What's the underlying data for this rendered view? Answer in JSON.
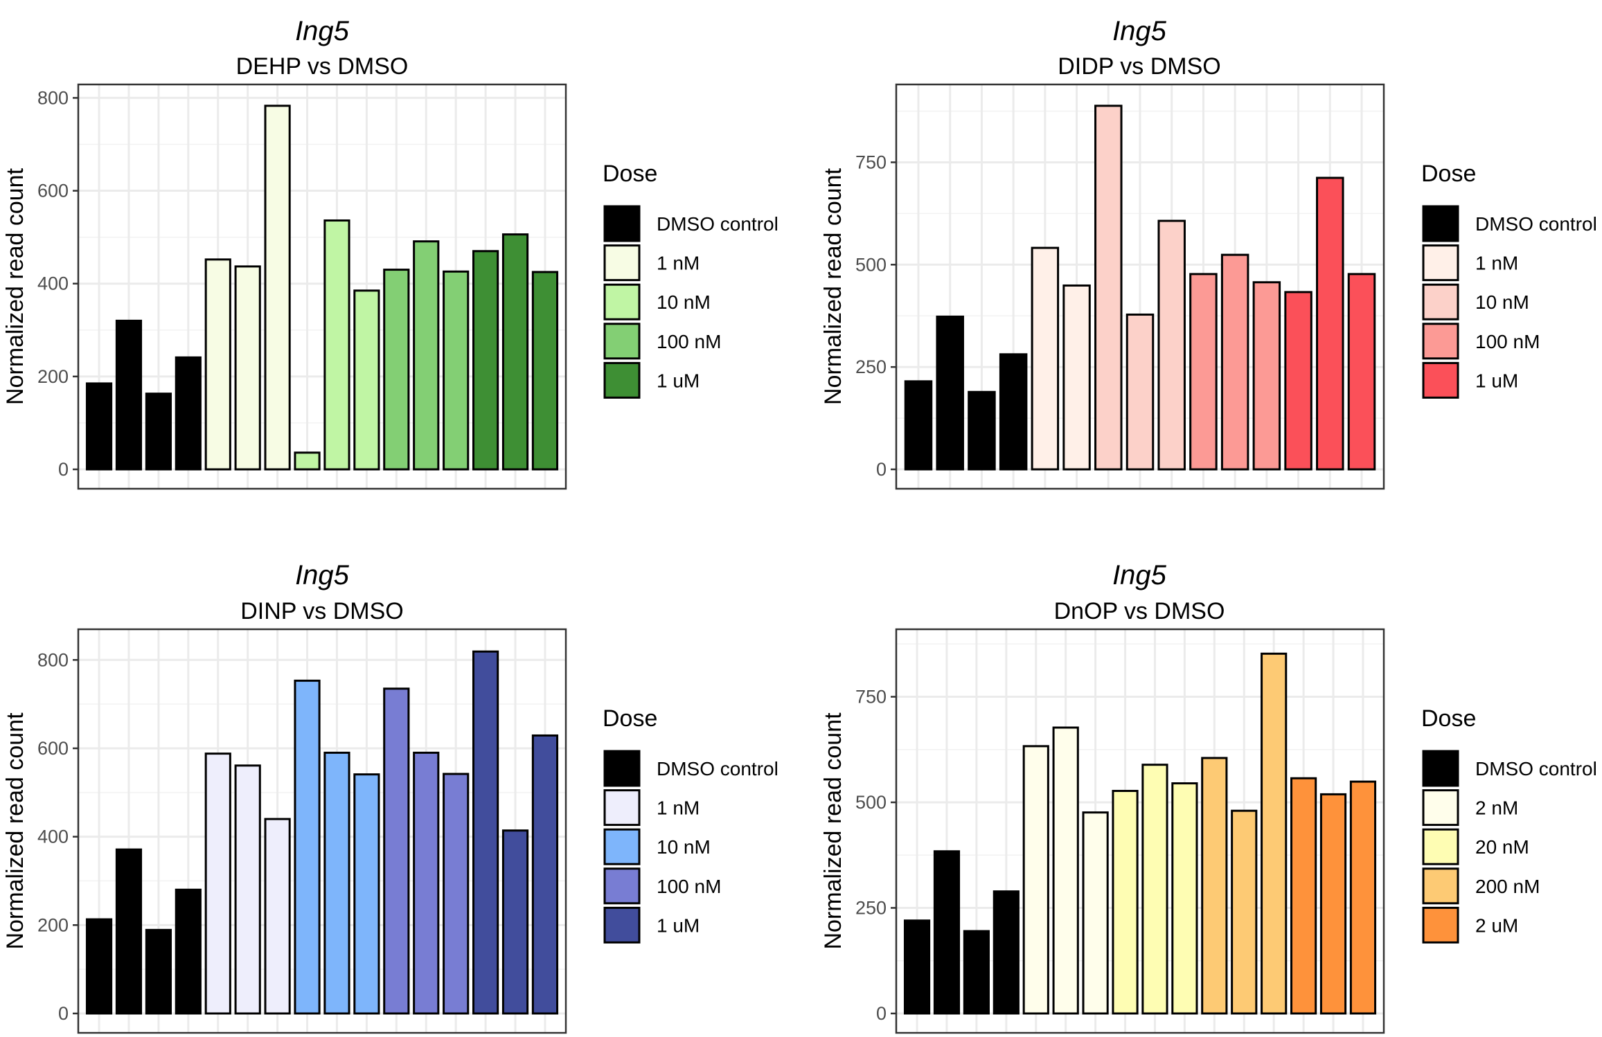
{
  "figure_layout": "2x2 grid of bar charts",
  "chart_data": [
    {
      "type": "bar",
      "gene": "Ing5",
      "title": "DEHP vs DMSO",
      "xlabel": "",
      "ylabel": "Normalized read count",
      "ylim": [
        0,
        820
      ],
      "yticks": [
        0,
        200,
        400,
        600,
        800
      ],
      "grid": true,
      "legend": {
        "title": "Dose",
        "placement": "right",
        "entries": [
          {
            "label": "DMSO control",
            "color": "#000000"
          },
          {
            "label": "1 nM",
            "color": "#f7fce4"
          },
          {
            "label": "10 nM",
            "color": "#c0f5a4"
          },
          {
            "label": "100 nM",
            "color": "#83cf74"
          },
          {
            "label": "1 uM",
            "color": "#3e8f34"
          }
        ]
      },
      "bars": [
        {
          "dose": "DMSO control",
          "value": 185
        },
        {
          "dose": "DMSO control",
          "value": 320
        },
        {
          "dose": "DMSO control",
          "value": 163
        },
        {
          "dose": "DMSO control",
          "value": 241
        },
        {
          "dose": "1 nM",
          "value": 452
        },
        {
          "dose": "1 nM",
          "value": 437
        },
        {
          "dose": "1 nM",
          "value": 783
        },
        {
          "dose": "10 nM",
          "value": 36
        },
        {
          "dose": "10 nM",
          "value": 536
        },
        {
          "dose": "10 nM",
          "value": 385
        },
        {
          "dose": "100 nM",
          "value": 430
        },
        {
          "dose": "100 nM",
          "value": 491
        },
        {
          "dose": "100 nM",
          "value": 426
        },
        {
          "dose": "1 uM",
          "value": 470
        },
        {
          "dose": "1 uM",
          "value": 506
        },
        {
          "dose": "1 uM",
          "value": 425
        }
      ]
    },
    {
      "type": "bar",
      "gene": "Ing5",
      "title": "DIDP vs DMSO",
      "xlabel": "",
      "ylabel": "Normalized read count",
      "ylim": [
        0,
        930
      ],
      "yticks": [
        0,
        250,
        500,
        750
      ],
      "grid": true,
      "legend": {
        "title": "Dose",
        "placement": "right",
        "entries": [
          {
            "label": "DMSO control",
            "color": "#000000"
          },
          {
            "label": "1 nM",
            "color": "#fff0e8"
          },
          {
            "label": "10 nM",
            "color": "#fcd1c9"
          },
          {
            "label": "100 nM",
            "color": "#fc9a95"
          },
          {
            "label": "1 uM",
            "color": "#fb5059"
          }
        ]
      },
      "bars": [
        {
          "dose": "DMSO control",
          "value": 215
        },
        {
          "dose": "DMSO control",
          "value": 373
        },
        {
          "dose": "DMSO control",
          "value": 189
        },
        {
          "dose": "DMSO control",
          "value": 281
        },
        {
          "dose": "1 nM",
          "value": 541
        },
        {
          "dose": "1 nM",
          "value": 449
        },
        {
          "dose": "10 nM",
          "value": 888
        },
        {
          "dose": "10 nM",
          "value": 378
        },
        {
          "dose": "10 nM",
          "value": 607
        },
        {
          "dose": "100 nM",
          "value": 477
        },
        {
          "dose": "100 nM",
          "value": 524
        },
        {
          "dose": "100 nM",
          "value": 457
        },
        {
          "dose": "1 uM",
          "value": 433
        },
        {
          "dose": "1 uM",
          "value": 712
        },
        {
          "dose": "1 uM",
          "value": 477
        }
      ]
    },
    {
      "type": "bar",
      "gene": "Ing5",
      "title": "DINP vs DMSO",
      "xlabel": "",
      "ylabel": "Normalized read count",
      "ylim": [
        0,
        860
      ],
      "yticks": [
        0,
        200,
        400,
        600,
        800
      ],
      "grid": true,
      "legend": {
        "title": "Dose",
        "placement": "right",
        "entries": [
          {
            "label": "DMSO control",
            "color": "#000000"
          },
          {
            "label": "1 nM",
            "color": "#eeeefc"
          },
          {
            "label": "10 nM",
            "color": "#7eb5fb"
          },
          {
            "label": "100 nM",
            "color": "#787dd3"
          },
          {
            "label": "1 uM",
            "color": "#414d9c"
          }
        ]
      },
      "bars": [
        {
          "dose": "DMSO control",
          "value": 213
        },
        {
          "dose": "DMSO control",
          "value": 371
        },
        {
          "dose": "DMSO control",
          "value": 189
        },
        {
          "dose": "DMSO control",
          "value": 280
        },
        {
          "dose": "1 nM",
          "value": 588
        },
        {
          "dose": "1 nM",
          "value": 561
        },
        {
          "dose": "1 nM",
          "value": 440
        },
        {
          "dose": "10 nM",
          "value": 753
        },
        {
          "dose": "10 nM",
          "value": 590
        },
        {
          "dose": "10 nM",
          "value": 541
        },
        {
          "dose": "100 nM",
          "value": 735
        },
        {
          "dose": "100 nM",
          "value": 590
        },
        {
          "dose": "100 nM",
          "value": 542
        },
        {
          "dose": "1 uM",
          "value": 819
        },
        {
          "dose": "1 uM",
          "value": 414
        },
        {
          "dose": "1 uM",
          "value": 629
        }
      ]
    },
    {
      "type": "bar",
      "gene": "Ing5",
      "title": "DnOP vs DMSO",
      "xlabel": "",
      "ylabel": "Normalized read count",
      "ylim": [
        0,
        900
      ],
      "yticks": [
        0,
        250,
        500,
        750
      ],
      "grid": true,
      "legend": {
        "title": "Dose",
        "placement": "right",
        "entries": [
          {
            "label": "DMSO control",
            "color": "#000000"
          },
          {
            "label": "2 nM",
            "color": "#fffeeb"
          },
          {
            "label": "20 nM",
            "color": "#fefdb3"
          },
          {
            "label": "200 nM",
            "color": "#fdca74"
          },
          {
            "label": "2 uM",
            "color": "#fe923b"
          }
        ]
      },
      "bars": [
        {
          "dose": "DMSO control",
          "value": 220
        },
        {
          "dose": "DMSO control",
          "value": 384
        },
        {
          "dose": "DMSO control",
          "value": 195
        },
        {
          "dose": "DMSO control",
          "value": 289
        },
        {
          "dose": "2 nM",
          "value": 633
        },
        {
          "dose": "2 nM",
          "value": 677
        },
        {
          "dose": "2 nM",
          "value": 476
        },
        {
          "dose": "20 nM",
          "value": 527
        },
        {
          "dose": "20 nM",
          "value": 589
        },
        {
          "dose": "20 nM",
          "value": 545
        },
        {
          "dose": "200 nM",
          "value": 605
        },
        {
          "dose": "200 nM",
          "value": 480
        },
        {
          "dose": "200 nM",
          "value": 852
        },
        {
          "dose": "2 uM",
          "value": 557
        },
        {
          "dose": "2 uM",
          "value": 519
        },
        {
          "dose": "2 uM",
          "value": 549
        }
      ]
    }
  ]
}
